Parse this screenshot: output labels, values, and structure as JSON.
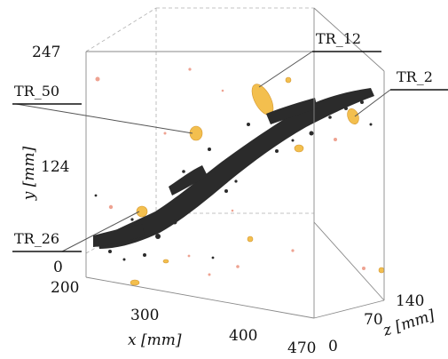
{
  "axes": {
    "y": {
      "label": "y [mm]",
      "ticks": [
        "247",
        "124",
        "0"
      ]
    },
    "x": {
      "label": "x [mm]",
      "ticks": [
        "200",
        "300",
        "400",
        "470"
      ]
    },
    "z": {
      "label": "z [mm]",
      "ticks": [
        "0",
        "70",
        "140"
      ]
    }
  },
  "tags": [
    {
      "id": "tr12",
      "text": "TR_12"
    },
    {
      "id": "tr2",
      "text": "TR_2"
    },
    {
      "id": "tr50",
      "text": "TR_50"
    },
    {
      "id": "tr26",
      "text": "TR_26"
    }
  ],
  "colors": {
    "core": "#2b2b2b",
    "cluster": "#f2b93b",
    "dust": "#e77b62",
    "edge": "#8a8a8a"
  }
}
